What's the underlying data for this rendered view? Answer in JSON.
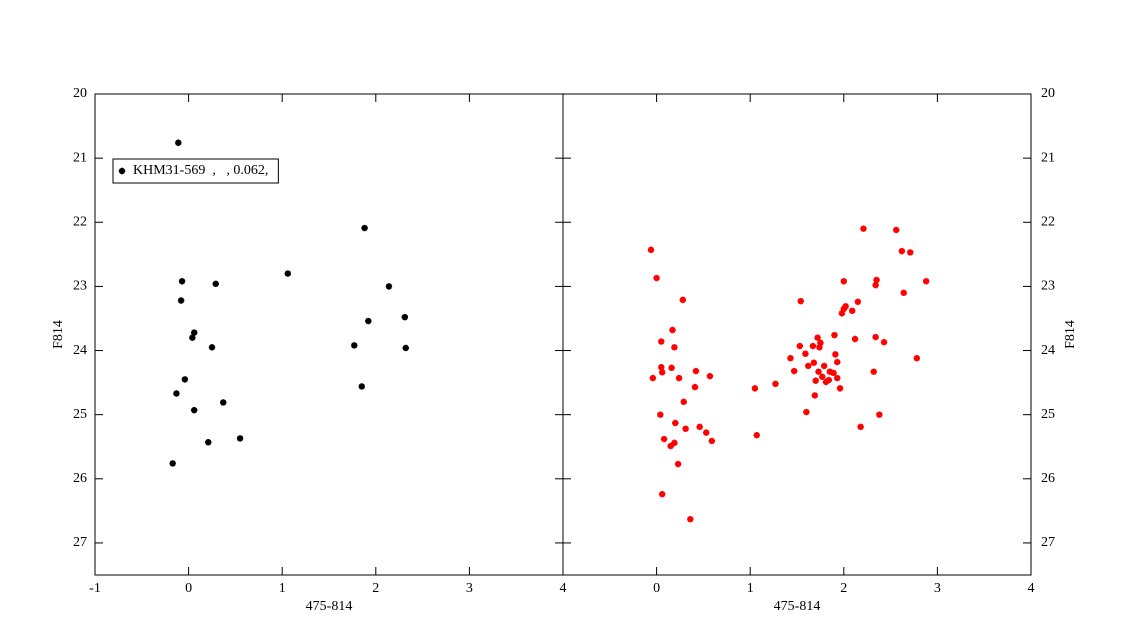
{
  "chart_data": [
    {
      "type": "scatter",
      "xlabel": "475-814",
      "ylabel": "F814",
      "yaxis_side": "left",
      "legend": "upper left",
      "xlim": [
        -1,
        4
      ],
      "xticks": [
        -1,
        0,
        1,
        2,
        3,
        4
      ],
      "ylim": [
        27.5,
        20
      ],
      "yticks": [
        20,
        21,
        22,
        23,
        24,
        25,
        26,
        27
      ],
      "series": [
        {
          "name": "KHM31-569  ,   , 0.062,",
          "color": "#000000",
          "x": [
            -0.11,
            -0.07,
            0.29,
            1.06,
            1.88,
            2.14,
            -0.08,
            1.92,
            2.31,
            0.06,
            0.04,
            0.25,
            1.77,
            2.32,
            -0.04,
            -0.13,
            1.85,
            0.37,
            0.06,
            0.55,
            0.21,
            -0.17
          ],
          "values": [
            20.76,
            22.92,
            22.96,
            22.8,
            22.09,
            23.0,
            23.22,
            23.54,
            23.48,
            23.72,
            23.8,
            23.95,
            23.92,
            23.96,
            24.45,
            24.67,
            24.56,
            24.81,
            24.93,
            25.37,
            25.43,
            25.76
          ]
        }
      ]
    },
    {
      "type": "scatter",
      "xlabel": "475-814",
      "ylabel": "F814",
      "yaxis_side": "right",
      "xlim": [
        -1,
        4
      ],
      "xticks": [
        0,
        1,
        2,
        3,
        4
      ],
      "ylim": [
        27.5,
        20
      ],
      "yticks": [
        20,
        21,
        22,
        23,
        24,
        25,
        26,
        27
      ],
      "series": [
        {
          "color": "#ff0000",
          "x": [
            -0.06,
            0.0,
            0.28,
            0.17,
            0.05,
            0.19,
            0.05,
            0.16,
            0.06,
            -0.04,
            0.24,
            0.42,
            0.57,
            0.41,
            0.29,
            0.04,
            0.2,
            0.46,
            0.31,
            0.53,
            0.08,
            0.19,
            0.15,
            0.59,
            0.23,
            0.06,
            0.36,
            1.05,
            1.07,
            1.27,
            1.43,
            1.47,
            1.54,
            1.53,
            1.59,
            1.62,
            1.6,
            1.69,
            1.72,
            1.67,
            1.74,
            1.75,
            1.68,
            1.73,
            1.77,
            1.81,
            1.7,
            1.84,
            1.85,
            1.79,
            1.89,
            1.93,
            1.91,
            1.9,
            1.96,
            1.93,
            2.0,
            2.02,
            1.98,
            2.0,
            2.09,
            2.15,
            2.12,
            2.21,
            2.18,
            2.34,
            2.32,
            2.35,
            2.34,
            2.43,
            2.38,
            2.56,
            2.62,
            2.64,
            2.71,
            2.78,
            2.88
          ],
          "values": [
            22.43,
            22.87,
            23.21,
            23.68,
            23.86,
            23.95,
            24.26,
            24.27,
            24.34,
            24.43,
            24.43,
            24.32,
            24.4,
            24.57,
            24.8,
            25.0,
            25.13,
            25.19,
            25.22,
            25.28,
            25.38,
            25.44,
            25.49,
            25.41,
            25.77,
            26.24,
            26.63,
            24.59,
            25.32,
            24.52,
            24.12,
            24.32,
            23.23,
            23.93,
            24.05,
            24.24,
            24.96,
            24.7,
            23.8,
            23.93,
            23.95,
            23.88,
            24.19,
            24.33,
            24.41,
            24.49,
            24.47,
            24.46,
            24.33,
            24.24,
            24.35,
            24.18,
            24.06,
            23.76,
            24.59,
            24.43,
            23.35,
            23.31,
            23.42,
            22.92,
            23.38,
            23.24,
            23.82,
            22.1,
            25.19,
            23.79,
            24.33,
            22.9,
            22.98,
            23.87,
            25.0,
            22.12,
            22.45,
            23.1,
            22.47,
            24.12,
            22.92
          ]
        }
      ]
    }
  ]
}
